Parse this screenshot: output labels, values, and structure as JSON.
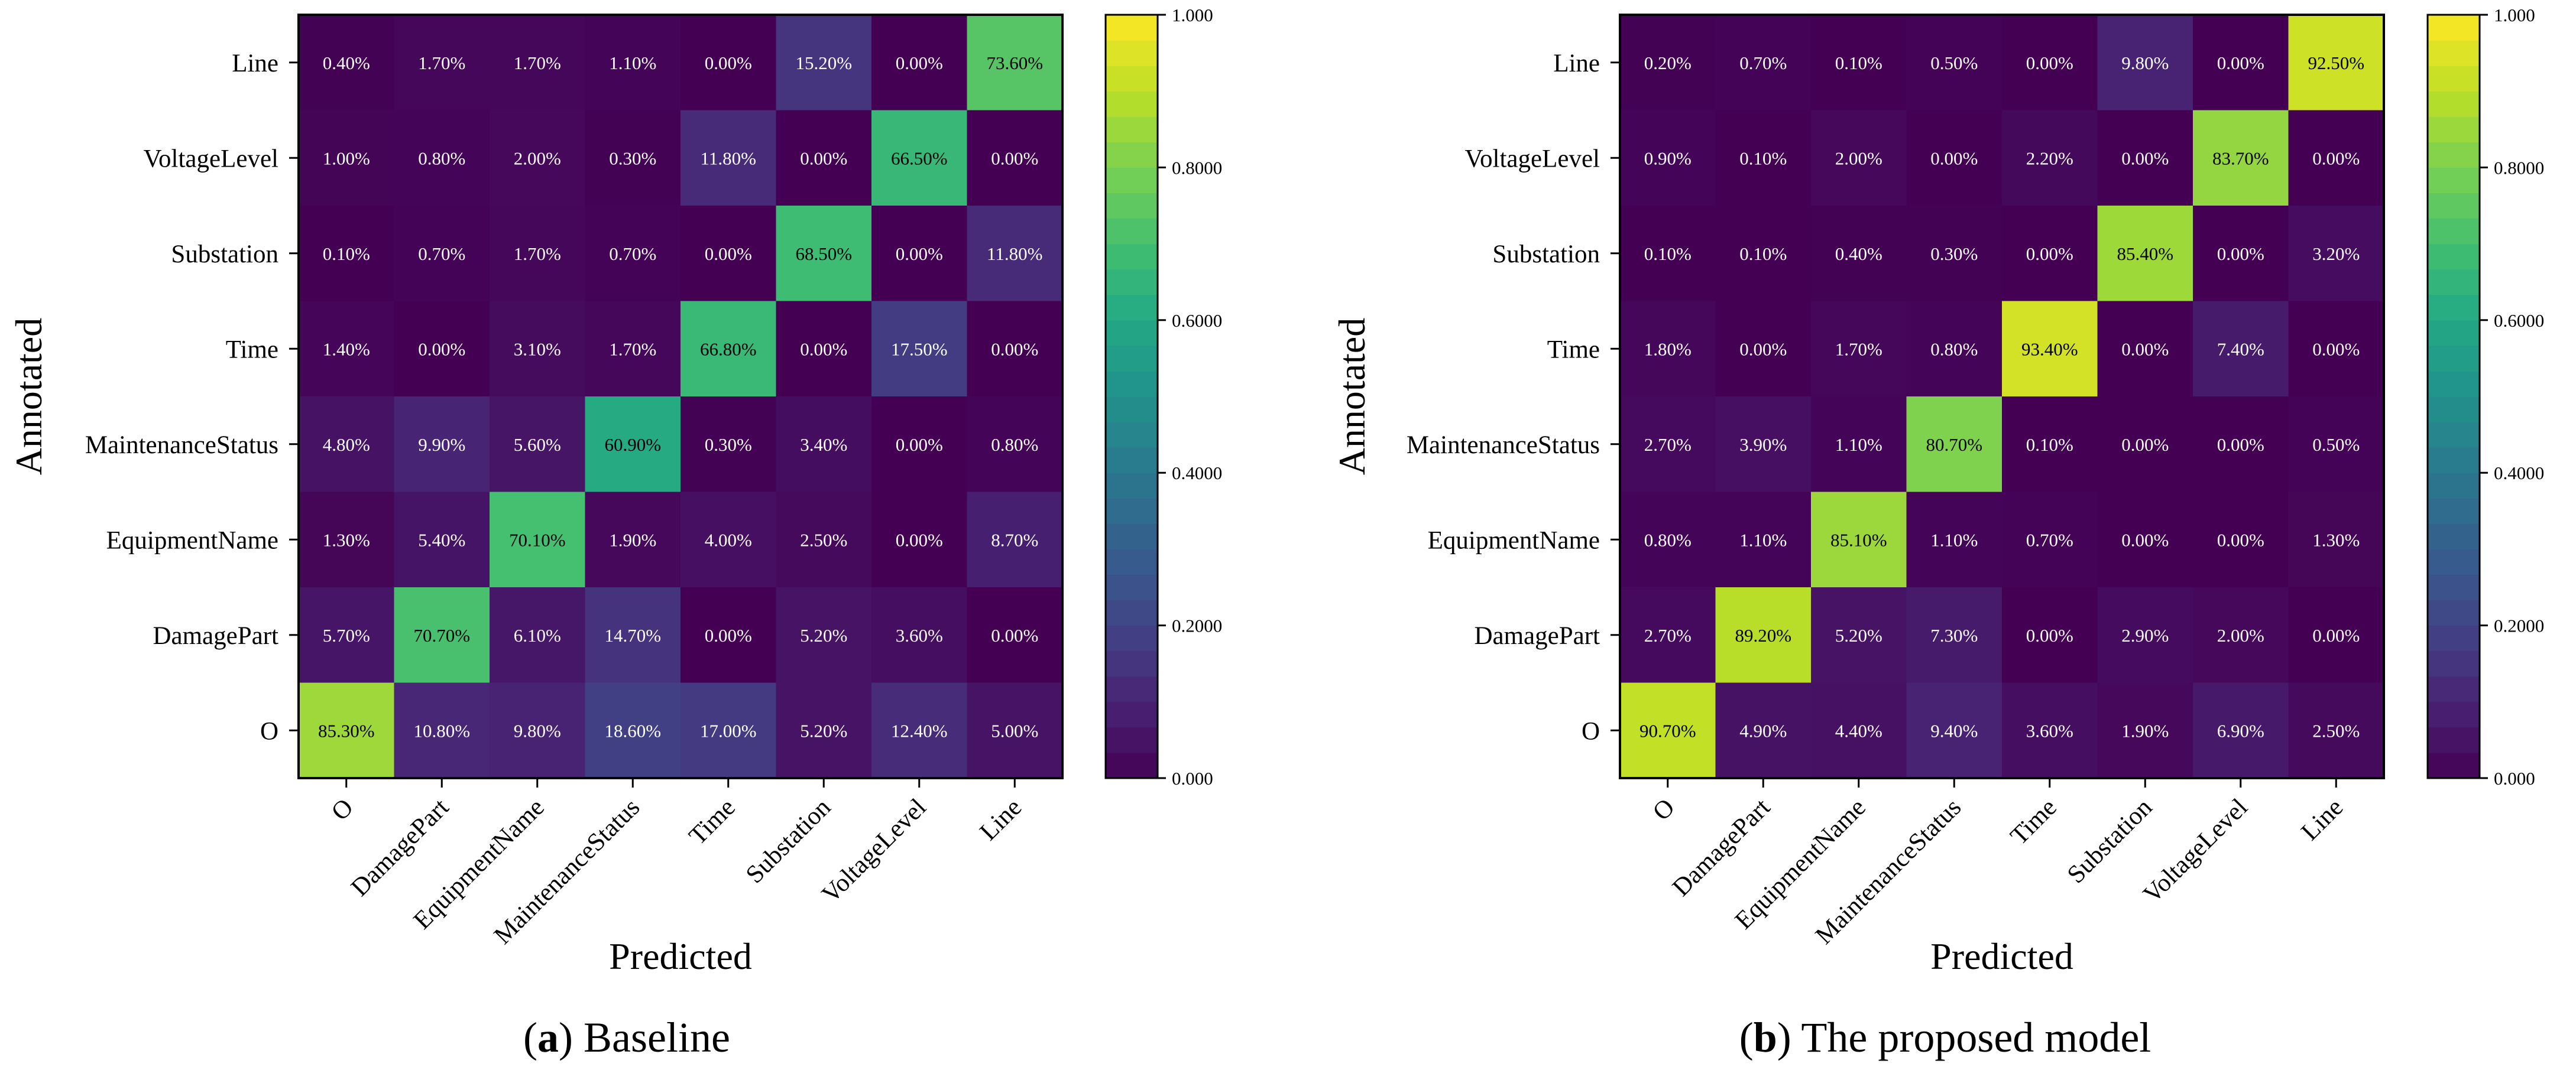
{
  "figure": {
    "panel_a_letter": "a",
    "panel_a_caption": " Baseline",
    "panel_b_letter": "b",
    "panel_b_caption": " The proposed model"
  },
  "chart_data": [
    {
      "type": "heatmap",
      "panel": "a",
      "title": "(a) Baseline",
      "xlabel": "Predicted",
      "ylabel": "Annotated",
      "columns": [
        "O",
        "DamagePart",
        "EquipmentName",
        "MaintenanceStatus",
        "Time",
        "Substation",
        "VoltageLevel",
        "Line"
      ],
      "rows": [
        "Line",
        "VoltageLevel",
        "Substation",
        "Time",
        "MaintenanceStatus",
        "EquipmentName",
        "DamagePart",
        "O"
      ],
      "values": [
        [
          0.004,
          0.017,
          0.017,
          0.011,
          0.0,
          0.152,
          0.0,
          0.736
        ],
        [
          0.01,
          0.008,
          0.02,
          0.003,
          0.118,
          0.0,
          0.665,
          0.0
        ],
        [
          0.001,
          0.007,
          0.017,
          0.007,
          0.0,
          0.685,
          0.0,
          0.118
        ],
        [
          0.014,
          0.0,
          0.031,
          0.017,
          0.668,
          0.0,
          0.175,
          0.0
        ],
        [
          0.048,
          0.099,
          0.056,
          0.609,
          0.003,
          0.034,
          0.0,
          0.008
        ],
        [
          0.013,
          0.054,
          0.701,
          0.019,
          0.04,
          0.025,
          0.0,
          0.087
        ],
        [
          0.057,
          0.707,
          0.061,
          0.147,
          0.0,
          0.052,
          0.036,
          0.0
        ],
        [
          0.853,
          0.108,
          0.098,
          0.186,
          0.17,
          0.052,
          0.124,
          0.05
        ]
      ],
      "labels": [
        [
          "0.40%",
          "1.70%",
          "1.70%",
          "1.10%",
          "0.00%",
          "15.20%",
          "0.00%",
          "73.60%"
        ],
        [
          "1.00%",
          "0.80%",
          "2.00%",
          "0.30%",
          "11.80%",
          "0.00%",
          "66.50%",
          "0.00%"
        ],
        [
          "0.10%",
          "0.70%",
          "1.70%",
          "0.70%",
          "0.00%",
          "68.50%",
          "0.00%",
          "11.80%"
        ],
        [
          "1.40%",
          "0.00%",
          "3.10%",
          "1.70%",
          "66.80%",
          "0.00%",
          "17.50%",
          "0.00%"
        ],
        [
          "4.80%",
          "9.90%",
          "5.60%",
          "60.90%",
          "0.30%",
          "3.40%",
          "0.00%",
          "0.80%"
        ],
        [
          "1.30%",
          "5.40%",
          "70.10%",
          "1.90%",
          "4.00%",
          "2.50%",
          "0.00%",
          "8.70%"
        ],
        [
          "5.70%",
          "70.70%",
          "6.10%",
          "14.70%",
          "0.00%",
          "5.20%",
          "3.60%",
          "0.00%"
        ],
        [
          "85.30%",
          "10.80%",
          "9.80%",
          "18.60%",
          "17.00%",
          "5.20%",
          "12.40%",
          "5.00%"
        ]
      ],
      "colorbar": {
        "range": [
          0,
          1
        ],
        "ticks": [
          0,
          0.2,
          0.4,
          0.6,
          0.8,
          1.0
        ],
        "tick_labels": [
          "0.000",
          "0.2000",
          "0.4000",
          "0.6000",
          "0.8000",
          "1.000"
        ],
        "colormap": "viridis"
      }
    },
    {
      "type": "heatmap",
      "panel": "b",
      "title": "(b) The proposed model",
      "xlabel": "Predicted",
      "ylabel": "Annotated",
      "columns": [
        "O",
        "DamagePart",
        "EquipmentName",
        "MaintenanceStatus",
        "Time",
        "Substation",
        "VoltageLevel",
        "Line"
      ],
      "rows": [
        "Line",
        "VoltageLevel",
        "Substation",
        "Time",
        "MaintenanceStatus",
        "EquipmentName",
        "DamagePart",
        "O"
      ],
      "values": [
        [
          0.002,
          0.007,
          0.001,
          0.005,
          0.0,
          0.098,
          0.0,
          0.925
        ],
        [
          0.009,
          0.001,
          0.02,
          0.0,
          0.022,
          0.0,
          0.837,
          0.0
        ],
        [
          0.001,
          0.001,
          0.004,
          0.003,
          0.0,
          0.854,
          0.0,
          0.032
        ],
        [
          0.018,
          0.0,
          0.017,
          0.008,
          0.934,
          0.0,
          0.074,
          0.0
        ],
        [
          0.027,
          0.039,
          0.011,
          0.807,
          0.001,
          0.0,
          0.0,
          0.005
        ],
        [
          0.008,
          0.011,
          0.851,
          0.011,
          0.007,
          0.0,
          0.0,
          0.013
        ],
        [
          0.027,
          0.892,
          0.052,
          0.073,
          0.0,
          0.029,
          0.02,
          0.0
        ],
        [
          0.907,
          0.049,
          0.044,
          0.094,
          0.036,
          0.019,
          0.069,
          0.025
        ]
      ],
      "labels": [
        [
          "0.20%",
          "0.70%",
          "0.10%",
          "0.50%",
          "0.00%",
          "9.80%",
          "0.00%",
          "92.50%"
        ],
        [
          "0.90%",
          "0.10%",
          "2.00%",
          "0.00%",
          "2.20%",
          "0.00%",
          "83.70%",
          "0.00%"
        ],
        [
          "0.10%",
          "0.10%",
          "0.40%",
          "0.30%",
          "0.00%",
          "85.40%",
          "0.00%",
          "3.20%"
        ],
        [
          "1.80%",
          "0.00%",
          "1.70%",
          "0.80%",
          "93.40%",
          "0.00%",
          "7.40%",
          "0.00%"
        ],
        [
          "2.70%",
          "3.90%",
          "1.10%",
          "80.70%",
          "0.10%",
          "0.00%",
          "0.00%",
          "0.50%"
        ],
        [
          "0.80%",
          "1.10%",
          "85.10%",
          "1.10%",
          "0.70%",
          "0.00%",
          "0.00%",
          "1.30%"
        ],
        [
          "2.70%",
          "89.20%",
          "5.20%",
          "7.30%",
          "0.00%",
          "2.90%",
          "2.00%",
          "0.00%"
        ],
        [
          "90.70%",
          "4.90%",
          "4.40%",
          "9.40%",
          "3.60%",
          "1.90%",
          "6.90%",
          "2.50%"
        ]
      ],
      "colorbar": {
        "range": [
          0,
          1
        ],
        "ticks": [
          0,
          0.2,
          0.4,
          0.6,
          0.8,
          1.0
        ],
        "tick_labels": [
          "0.000",
          "0.2000",
          "0.4000",
          "0.6000",
          "0.8000",
          "1.000"
        ],
        "colormap": "viridis"
      }
    }
  ]
}
